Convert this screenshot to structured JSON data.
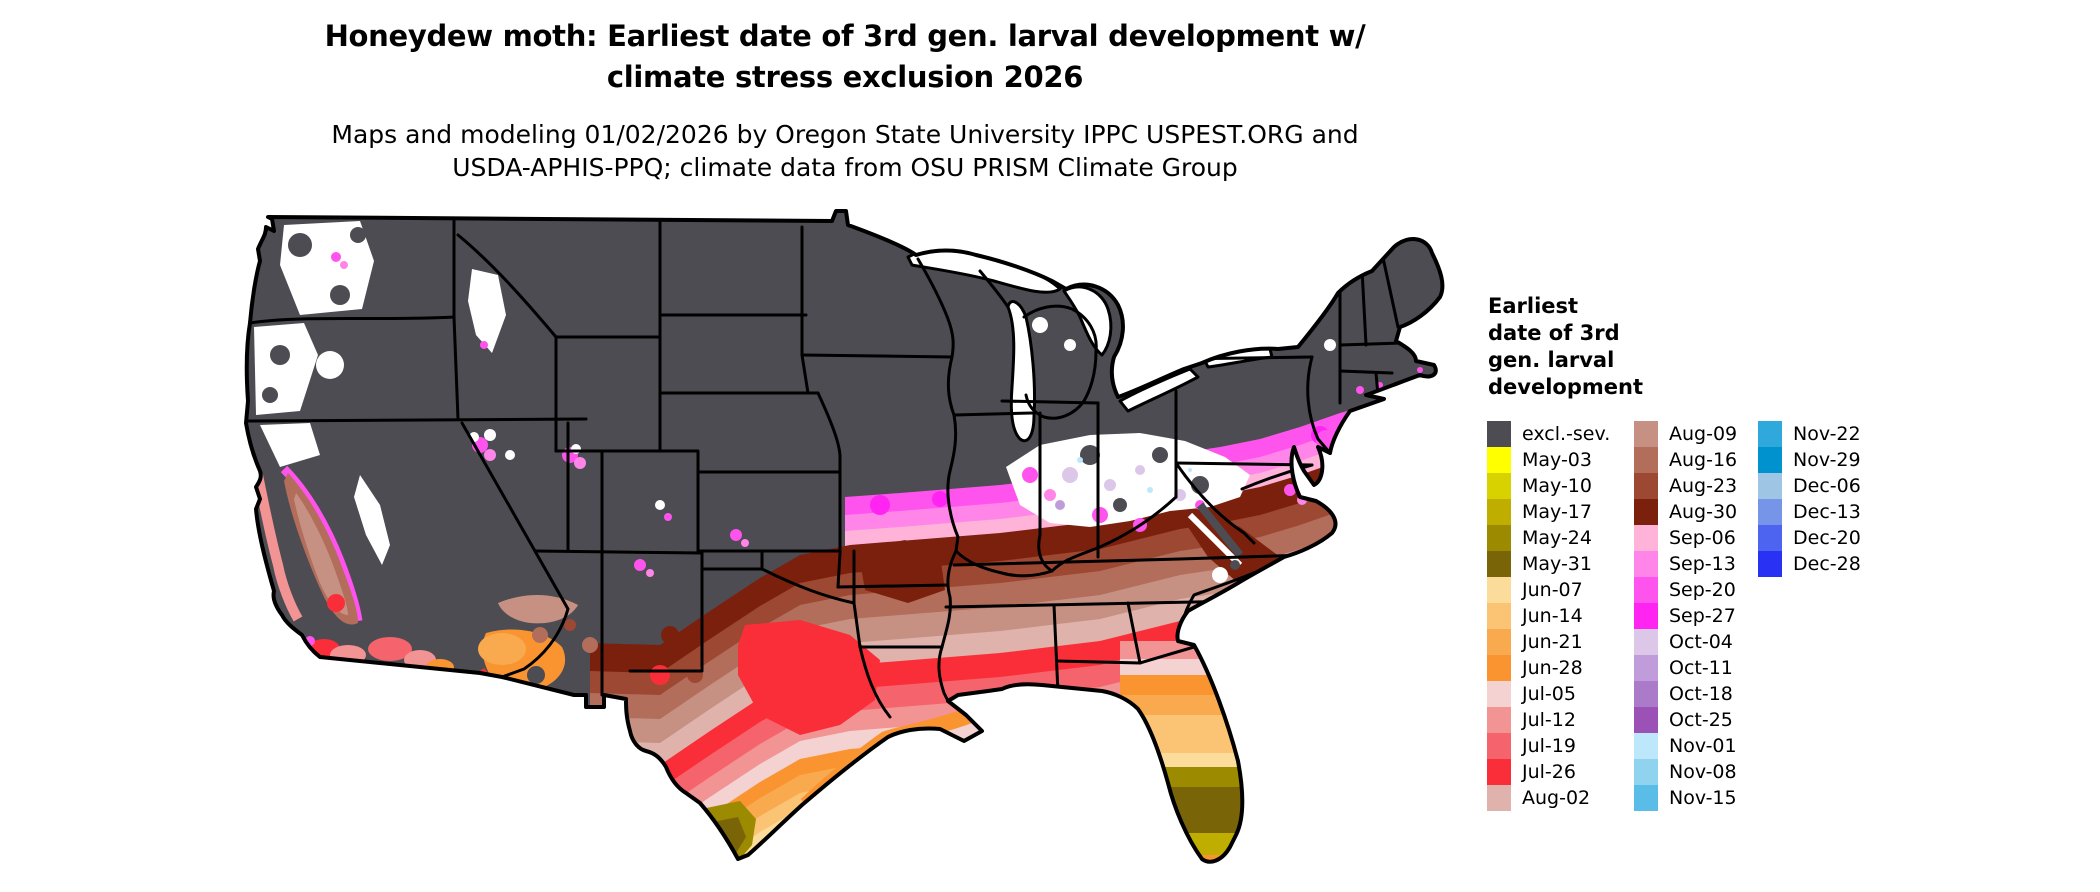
{
  "header": {
    "title_line1": "Honeydew moth: Earliest date of 3rd gen. larval development w/",
    "title_line2": "climate stress exclusion 2026",
    "subtitle_line1": "Maps and modeling 01/02/2026 by Oregon State University IPPC USPEST.ORG and",
    "subtitle_line2": "USDA-APHIS-PPQ; climate data from OSU PRISM Climate Group"
  },
  "legend": {
    "title_lines": [
      "Earliest",
      "date of 3rd",
      "gen. larval",
      "development"
    ],
    "columns": [
      {
        "entries": [
          {
            "label": "excl.-sev.",
            "color_key": "excl"
          },
          {
            "label": "May-03",
            "color_key": "may03"
          },
          {
            "label": "May-10",
            "color_key": "may10"
          },
          {
            "label": "May-17",
            "color_key": "may17"
          },
          {
            "label": "May-24",
            "color_key": "may24"
          },
          {
            "label": "May-31",
            "color_key": "may31"
          },
          {
            "label": "Jun-07",
            "color_key": "jun07"
          },
          {
            "label": "Jun-14",
            "color_key": "jun14"
          },
          {
            "label": "Jun-21",
            "color_key": "jun21"
          },
          {
            "label": "Jun-28",
            "color_key": "jun28"
          },
          {
            "label": "Jul-05",
            "color_key": "jul05"
          },
          {
            "label": "Jul-12",
            "color_key": "jul12"
          },
          {
            "label": "Jul-19",
            "color_key": "jul19"
          },
          {
            "label": "Jul-26",
            "color_key": "jul26"
          },
          {
            "label": "Aug-02",
            "color_key": "aug02"
          }
        ]
      },
      {
        "entries": [
          {
            "label": "Aug-09",
            "color_key": "aug09"
          },
          {
            "label": "Aug-16",
            "color_key": "aug16"
          },
          {
            "label": "Aug-23",
            "color_key": "aug23"
          },
          {
            "label": "Aug-30",
            "color_key": "aug30"
          },
          {
            "label": "Sep-06",
            "color_key": "sep06"
          },
          {
            "label": "Sep-13",
            "color_key": "sep13"
          },
          {
            "label": "Sep-20",
            "color_key": "sep20"
          },
          {
            "label": "Sep-27",
            "color_key": "sep27"
          },
          {
            "label": "Oct-04",
            "color_key": "oct04"
          },
          {
            "label": "Oct-11",
            "color_key": "oct11"
          },
          {
            "label": "Oct-18",
            "color_key": "oct18"
          },
          {
            "label": "Oct-25",
            "color_key": "oct25"
          },
          {
            "label": "Nov-01",
            "color_key": "nov01"
          },
          {
            "label": "Nov-08",
            "color_key": "nov08"
          },
          {
            "label": "Nov-15",
            "color_key": "nov15"
          }
        ]
      },
      {
        "entries": [
          {
            "label": "Nov-22",
            "color_key": "nov22"
          },
          {
            "label": "Nov-29",
            "color_key": "nov29"
          },
          {
            "label": "Dec-06",
            "color_key": "dec06"
          },
          {
            "label": "Dec-13",
            "color_key": "dec13"
          },
          {
            "label": "Dec-20",
            "color_key": "dec20"
          },
          {
            "label": "Dec-28",
            "color_key": "dec28"
          }
        ]
      }
    ]
  },
  "palette": {
    "excl": "#4c4c52",
    "may03": "#ffff00",
    "may10": "#d8d200",
    "may17": "#bfae00",
    "may24": "#9c8a00",
    "may31": "#7a6408",
    "jun07": "#fbdc9b",
    "jun14": "#fac474",
    "jun21": "#f9a94e",
    "jun28": "#f99430",
    "jul05": "#f4d2d2",
    "jul12": "#f29394",
    "jul19": "#f5646c",
    "jul26": "#fa2e38",
    "aug02": "#dfb2ab",
    "aug09": "#c69183",
    "aug16": "#b26d5b",
    "aug23": "#9c4832",
    "aug30": "#7c200e",
    "sep06": "#ffb3d9",
    "sep13": "#ff86e8",
    "sep20": "#ff53ee",
    "sep27": "#ff24f2",
    "oct04": "#dcc7e9",
    "oct11": "#c19cdb",
    "oct18": "#ab7bc9",
    "oct25": "#9b51b5",
    "nov01": "#bde7fb",
    "nov08": "#8fd3ef",
    "nov15": "#5abde7",
    "nov22": "#2fa9dc",
    "nov29": "#0092cf",
    "dec06": "#9fc5e4",
    "dec13": "#7695e8",
    "dec20": "#4d64f0",
    "dec28": "#2831f4"
  },
  "map": {
    "region": "contiguous United States",
    "no_data_color": "#ffffff",
    "border_color": "#000000"
  }
}
